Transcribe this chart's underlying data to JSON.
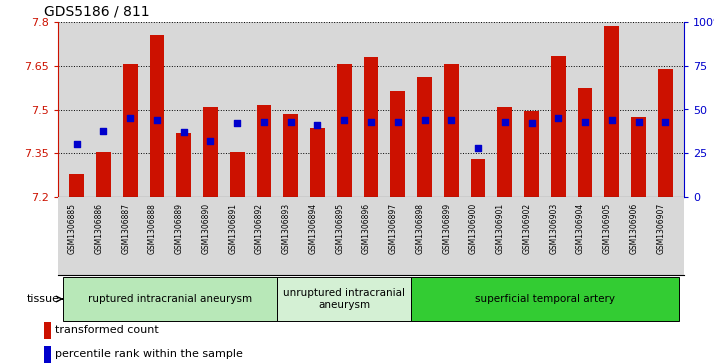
{
  "title": "GDS5186 / 811",
  "samples": [
    "GSM1306885",
    "GSM1306886",
    "GSM1306887",
    "GSM1306888",
    "GSM1306889",
    "GSM1306890",
    "GSM1306891",
    "GSM1306892",
    "GSM1306893",
    "GSM1306894",
    "GSM1306895",
    "GSM1306896",
    "GSM1306897",
    "GSM1306898",
    "GSM1306899",
    "GSM1306900",
    "GSM1306901",
    "GSM1306902",
    "GSM1306903",
    "GSM1306904",
    "GSM1306905",
    "GSM1306906",
    "GSM1306907"
  ],
  "transformed_count": [
    7.28,
    7.355,
    7.655,
    7.755,
    7.42,
    7.51,
    7.355,
    7.515,
    7.483,
    7.435,
    7.655,
    7.68,
    7.565,
    7.613,
    7.655,
    7.33,
    7.51,
    7.495,
    7.685,
    7.575,
    7.785,
    7.475,
    7.64
  ],
  "percentile_rank": [
    30,
    38,
    45,
    44,
    37,
    32,
    42,
    43,
    43,
    41,
    44,
    43,
    43,
    44,
    44,
    28,
    43,
    42,
    45,
    43,
    44,
    43,
    43
  ],
  "ylim_left": [
    7.2,
    7.8
  ],
  "ylim_right": [
    0,
    100
  ],
  "yticks_left": [
    7.2,
    7.35,
    7.5,
    7.65,
    7.8
  ],
  "ytick_labels_left": [
    "7.2",
    "7.35",
    "7.5",
    "7.65",
    "7.8"
  ],
  "yticks_right": [
    0,
    25,
    50,
    75,
    100
  ],
  "ytick_labels_right": [
    "0",
    "25",
    "50",
    "75",
    "100%"
  ],
  "bar_color": "#cc1100",
  "dot_color": "#0000cc",
  "bar_bottom": 7.2,
  "groups": [
    {
      "label": "ruptured intracranial aneurysm",
      "start": 0,
      "end": 8,
      "color": "#b8e8b8"
    },
    {
      "label": "unruptured intracranial\naneurysm",
      "start": 8,
      "end": 13,
      "color": "#d4f0d4"
    },
    {
      "label": "superficial temporal artery",
      "start": 13,
      "end": 23,
      "color": "#33cc33"
    }
  ],
  "tissue_label": "tissue",
  "legend_items": [
    {
      "label": "transformed count",
      "color": "#cc1100"
    },
    {
      "label": "percentile rank within the sample",
      "color": "#0000cc"
    }
  ],
  "plot_bg_color": "#ffffff",
  "chart_bg_color": "#d8d8d8"
}
